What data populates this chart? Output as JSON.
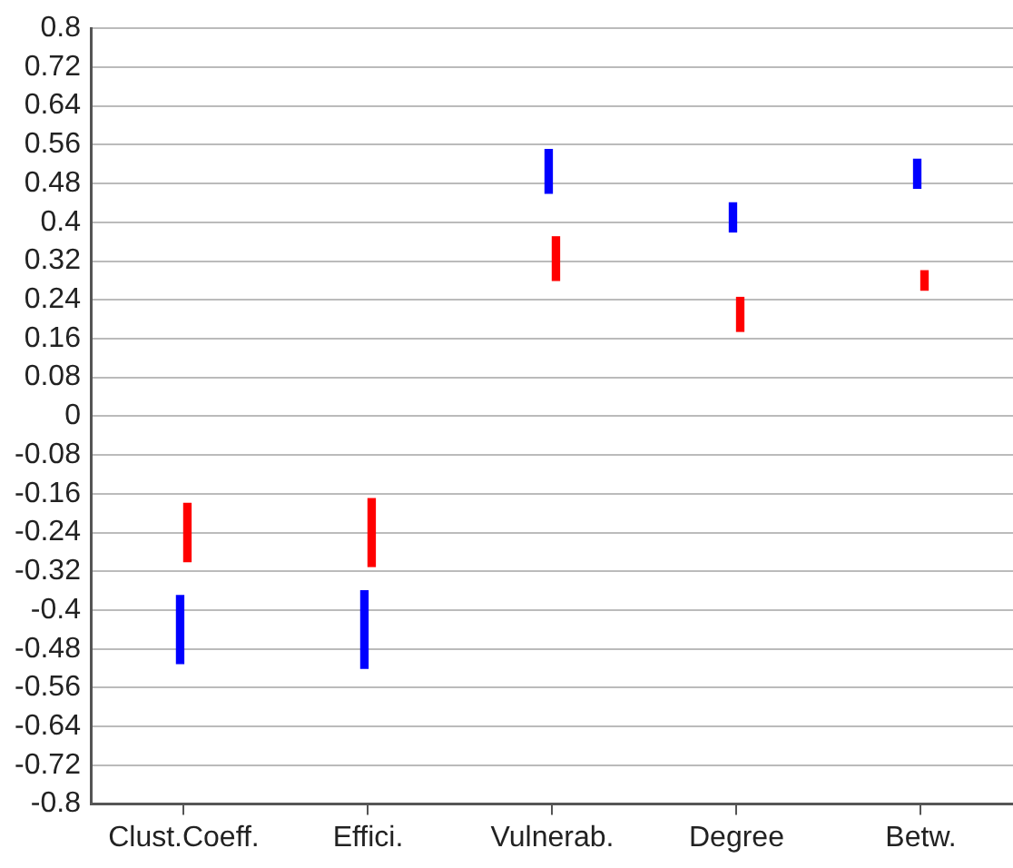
{
  "chart_data": {
    "type": "bar",
    "categories": [
      "Clust.Coeff.",
      "Effici.",
      "Vulnerab.",
      "Degree",
      "Betw."
    ],
    "series": [
      {
        "color": "#0000ff",
        "base": [
          -0.51,
          -0.52,
          0.46,
          0.38,
          0.47
        ],
        "values": [
          0.14,
          0.16,
          0.09,
          0.06,
          0.06
        ]
      },
      {
        "color": "#ff0000",
        "base": [
          -0.3,
          -0.31,
          0.28,
          0.175,
          0.26
        ],
        "values": [
          0.12,
          0.14,
          0.09,
          0.07,
          0.04
        ]
      }
    ],
    "ylim": [
      -0.8,
      0.8
    ],
    "yticks": [
      -0.8,
      -0.72,
      -0.64,
      -0.56,
      -0.48,
      -0.4,
      -0.32,
      -0.24,
      -0.16,
      -0.08,
      0,
      0.08,
      0.16,
      0.24,
      0.32,
      0.4,
      0.48,
      0.56,
      0.64,
      0.72,
      0.8
    ],
    "grid": "y",
    "legend": false
  }
}
